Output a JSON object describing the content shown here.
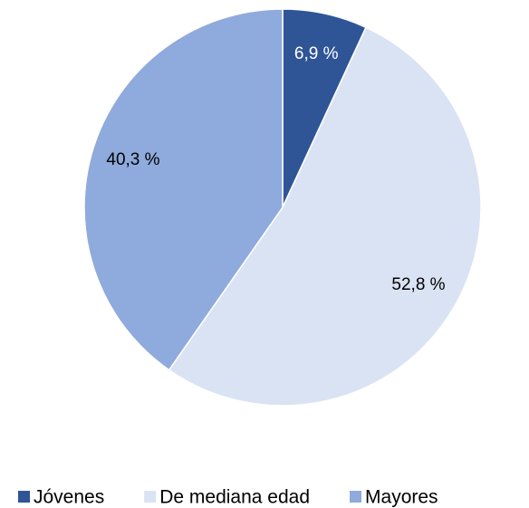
{
  "chart_data": {
    "type": "pie",
    "categories": [
      "Jóvenes",
      "De mediana edad",
      "Mayores"
    ],
    "values": [
      6.9,
      52.8,
      40.3
    ],
    "value_labels": [
      "6,9 %",
      "52,8 %",
      "40,3 %"
    ],
    "colors": [
      "#2f5597",
      "#dae3f3",
      "#8faadc"
    ],
    "legend": "bottom"
  }
}
